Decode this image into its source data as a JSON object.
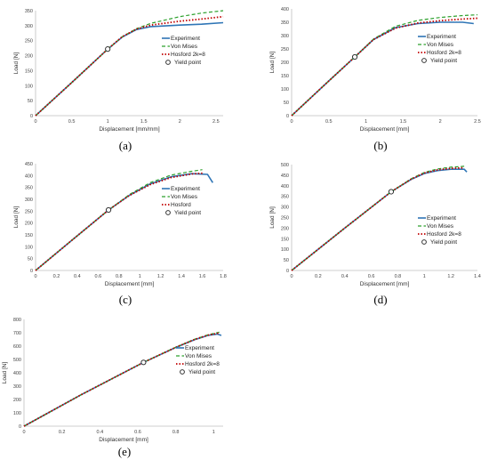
{
  "figure": {
    "background": "#ffffff"
  },
  "colors": {
    "experiment": "#2e75b6",
    "von_mises": "#2ca02c",
    "hosford": "#c00000",
    "yield": "#333333",
    "axis": "#bfbfbf"
  },
  "chart_data": [
    {
      "type": "line",
      "panel_label": "(a)",
      "xlabel": "Displacement [mm/mm]",
      "ylabel": "Load [N]",
      "xlim": [
        0,
        2.6
      ],
      "ylim": [
        0,
        350
      ],
      "xticks": [
        "0",
        "0.5",
        "1",
        "1.5",
        "2",
        "2.5"
      ],
      "xtick_values": [
        0,
        0.5,
        1,
        1.5,
        2,
        2.5
      ],
      "yticks": [
        "0",
        "50",
        "100",
        "150",
        "200",
        "250",
        "300",
        "350"
      ],
      "ytick_values": [
        0,
        50,
        100,
        150,
        200,
        250,
        300,
        350
      ],
      "legend_position": "center-right",
      "series": [
        {
          "name": "Experiment",
          "style": "experiment",
          "x": [
            0,
            0.5,
            1.0,
            1.2,
            1.4,
            1.6,
            2.0,
            2.3,
            2.6
          ],
          "y": [
            0,
            110,
            222,
            262,
            287,
            297,
            302,
            305,
            310
          ]
        },
        {
          "name": "Von Mises",
          "style": "von_mises",
          "x": [
            0,
            0.5,
            1.0,
            1.2,
            1.4,
            1.6,
            2.0,
            2.3,
            2.6
          ],
          "y": [
            0,
            110,
            222,
            263,
            290,
            308,
            330,
            342,
            350
          ]
        },
        {
          "name": "Hosford 2k=8",
          "style": "hosford",
          "x": [
            0,
            0.5,
            1.0,
            1.2,
            1.4,
            1.6,
            2.0,
            2.3,
            2.6
          ],
          "y": [
            0,
            110,
            222,
            263,
            289,
            302,
            315,
            322,
            330
          ]
        },
        {
          "name": "Yield point",
          "style": "yield",
          "x": [
            1.0
          ],
          "y": [
            222
          ]
        }
      ]
    },
    {
      "type": "line",
      "panel_label": "(b)",
      "xlabel": "Displacement [mm]",
      "ylabel": "Load [N]",
      "xlim": [
        0,
        2.5
      ],
      "ylim": [
        0,
        400
      ],
      "xticks": [
        "0",
        "0.5",
        "1",
        "1.5",
        "2",
        "2.5"
      ],
      "xtick_values": [
        0,
        0.5,
        1,
        1.5,
        2,
        2.5
      ],
      "yticks": [
        "0",
        "50",
        "100",
        "150",
        "200",
        "250",
        "300",
        "350",
        "400"
      ],
      "ytick_values": [
        0,
        50,
        100,
        150,
        200,
        250,
        300,
        350,
        400
      ],
      "legend_position": "center-right",
      "series": [
        {
          "name": "Experiment",
          "style": "experiment",
          "x": [
            0,
            0.5,
            0.85,
            1.1,
            1.4,
            1.7,
            2.0,
            2.3,
            2.45
          ],
          "y": [
            0,
            130,
            220,
            285,
            330,
            345,
            350,
            350,
            345
          ]
        },
        {
          "name": "Von Mises",
          "style": "von_mises",
          "x": [
            0,
            0.5,
            0.85,
            1.1,
            1.4,
            1.7,
            2.0,
            2.3,
            2.5
          ],
          "y": [
            0,
            130,
            220,
            287,
            335,
            357,
            368,
            375,
            378
          ]
        },
        {
          "name": "Hosford 2k=8",
          "style": "hosford",
          "x": [
            0,
            0.5,
            0.85,
            1.1,
            1.4,
            1.7,
            2.0,
            2.3,
            2.5
          ],
          "y": [
            0,
            130,
            220,
            285,
            328,
            347,
            356,
            362,
            365
          ]
        },
        {
          "name": "Yield point",
          "style": "yield",
          "x": [
            0.85
          ],
          "y": [
            220
          ]
        }
      ]
    },
    {
      "type": "line",
      "panel_label": "(c)",
      "xlabel": "Displacement [mm]",
      "ylabel": "Load [N]",
      "xlim": [
        0,
        1.8
      ],
      "ylim": [
        0,
        450
      ],
      "xticks": [
        "0",
        "0.2",
        "0.4",
        "0.6",
        "0.8",
        "1",
        "1.2",
        "1.4",
        "1.6",
        "1.8"
      ],
      "xtick_values": [
        0,
        0.2,
        0.4,
        0.6,
        0.8,
        1.0,
        1.2,
        1.4,
        1.6,
        1.8
      ],
      "yticks": [
        "0",
        "50",
        "100",
        "150",
        "200",
        "250",
        "300",
        "350",
        "400",
        "450"
      ],
      "ytick_values": [
        0,
        50,
        100,
        150,
        200,
        250,
        300,
        350,
        400,
        450
      ],
      "legend_position": "center-right",
      "series": [
        {
          "name": "Experiment",
          "style": "experiment",
          "x": [
            0,
            0.35,
            0.7,
            0.9,
            1.1,
            1.3,
            1.5,
            1.65,
            1.7
          ],
          "y": [
            0,
            128,
            255,
            317,
            365,
            395,
            408,
            405,
            370
          ]
        },
        {
          "name": "Von Mises",
          "style": "von_mises",
          "x": [
            0,
            0.35,
            0.7,
            0.9,
            1.1,
            1.3,
            1.5,
            1.6
          ],
          "y": [
            0,
            128,
            255,
            320,
            370,
            402,
            418,
            425
          ]
        },
        {
          "name": "Hosford",
          "style": "hosford",
          "x": [
            0,
            0.35,
            0.7,
            0.9,
            1.1,
            1.3,
            1.5,
            1.6
          ],
          "y": [
            0,
            128,
            255,
            316,
            362,
            392,
            407,
            410
          ]
        },
        {
          "name": "Yield point",
          "style": "yield",
          "x": [
            0.7
          ],
          "y": [
            255
          ]
        }
      ]
    },
    {
      "type": "line",
      "panel_label": "(d)",
      "xlabel": "Displacement [mm]",
      "ylabel": "Load [N]",
      "xlim": [
        0,
        1.4
      ],
      "ylim": [
        0,
        500
      ],
      "xticks": [
        "0",
        "0.2",
        "0.4",
        "0.6",
        "0.8",
        "1",
        "1.2",
        "1.4"
      ],
      "xtick_values": [
        0,
        0.2,
        0.4,
        0.6,
        0.8,
        1.0,
        1.2,
        1.4
      ],
      "yticks": [
        "0",
        "50",
        "100",
        "150",
        "200",
        "250",
        "300",
        "350",
        "400",
        "450",
        "500"
      ],
      "ytick_values": [
        0,
        50,
        100,
        150,
        200,
        250,
        300,
        350,
        400,
        450,
        500
      ],
      "legend_position": "center-right",
      "series": [
        {
          "name": "Experiment",
          "style": "experiment",
          "x": [
            0,
            0.4,
            0.75,
            0.9,
            1.0,
            1.1,
            1.2,
            1.3,
            1.32
          ],
          "y": [
            0,
            200,
            372,
            430,
            458,
            472,
            478,
            478,
            465
          ]
        },
        {
          "name": "Von Mises",
          "style": "von_mises",
          "x": [
            0,
            0.4,
            0.75,
            0.9,
            1.0,
            1.1,
            1.2,
            1.3
          ],
          "y": [
            0,
            200,
            372,
            433,
            463,
            480,
            488,
            492
          ]
        },
        {
          "name": "Hosford 2k=8",
          "style": "hosford",
          "x": [
            0,
            0.4,
            0.75,
            0.9,
            1.0,
            1.1,
            1.2,
            1.3
          ],
          "y": [
            0,
            200,
            372,
            431,
            460,
            475,
            482,
            485
          ]
        },
        {
          "name": "Yield point",
          "style": "yield",
          "x": [
            0.75
          ],
          "y": [
            372
          ]
        }
      ]
    },
    {
      "type": "line",
      "panel_label": "(e)",
      "xlabel": "Displacement [mm]",
      "ylabel": "Load [N]",
      "xlim": [
        0,
        1.05
      ],
      "ylim": [
        0,
        800
      ],
      "xticks": [
        "0",
        "0.2",
        "0.4",
        "0.6",
        "0.8",
        "1"
      ],
      "xtick_values": [
        0,
        0.2,
        0.4,
        0.6,
        0.8,
        1.0
      ],
      "yticks": [
        "0",
        "100",
        "200",
        "300",
        "400",
        "500",
        "600",
        "700",
        "800"
      ],
      "ytick_values": [
        0,
        100,
        200,
        300,
        400,
        500,
        600,
        700,
        800
      ],
      "legend_position": "center-right",
      "series": [
        {
          "name": "Experiment",
          "style": "experiment",
          "x": [
            0,
            0.3,
            0.63,
            0.8,
            0.9,
            0.97,
            1.02,
            1.04
          ],
          "y": [
            0,
            235,
            478,
            590,
            648,
            680,
            690,
            680
          ]
        },
        {
          "name": "Von Mises",
          "style": "von_mises",
          "x": [
            0,
            0.3,
            0.63,
            0.8,
            0.9,
            0.97,
            1.03
          ],
          "y": [
            0,
            235,
            478,
            592,
            652,
            685,
            705
          ]
        },
        {
          "name": "Hosford 2k=8",
          "style": "hosford",
          "x": [
            0,
            0.3,
            0.63,
            0.8,
            0.9,
            0.97,
            1.03
          ],
          "y": [
            0,
            235,
            478,
            591,
            650,
            682,
            698
          ]
        },
        {
          "name": "Yield point",
          "style": "yield",
          "x": [
            0.63
          ],
          "y": [
            478
          ]
        }
      ]
    }
  ]
}
